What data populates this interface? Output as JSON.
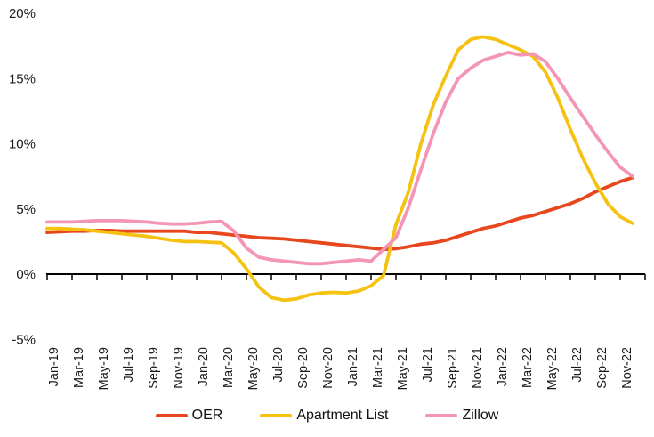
{
  "chart_data": {
    "type": "line",
    "title": "",
    "xlabel": "",
    "ylabel": "",
    "grid": false,
    "legend_position": "bottom",
    "ylim": [
      -5,
      20
    ],
    "y_tick_labels": [
      "-5%",
      "0%",
      "5%",
      "10%",
      "15%",
      "20%"
    ],
    "y_tick_values": [
      -5,
      0,
      5,
      10,
      15,
      20
    ],
    "x_tick_labels": [
      "Jan-19",
      "Mar-19",
      "May-19",
      "Jul-19",
      "Sep-19",
      "Nov-19",
      "Jan-20",
      "Mar-20",
      "May-20",
      "Jul-20",
      "Sep-20",
      "Nov-20",
      "Jan-21",
      "Mar-21",
      "May-21",
      "Jul-21",
      "Sep-21",
      "Nov-21",
      "Jan-22",
      "Mar-22",
      "May-22",
      "Jul-22",
      "Sep-22",
      "Nov-22"
    ],
    "months_per_x_tick": 2,
    "axis_color": "#000000",
    "series": [
      {
        "name": "OER",
        "color": "#E8471D",
        "values": [
          3.2,
          3.25,
          3.3,
          3.3,
          3.35,
          3.35,
          3.3,
          3.3,
          3.3,
          3.3,
          3.3,
          3.3,
          3.2,
          3.2,
          3.1,
          3.0,
          2.9,
          2.8,
          2.75,
          2.7,
          2.6,
          2.5,
          2.4,
          2.3,
          2.2,
          2.1,
          2.0,
          1.9,
          1.95,
          2.1,
          2.3,
          2.4,
          2.6,
          2.9,
          3.2,
          3.5,
          3.7,
          4.0,
          4.3,
          4.5,
          4.8,
          5.1,
          5.4,
          5.8,
          6.3,
          6.7,
          7.1,
          7.4
        ]
      },
      {
        "name": "Apartment List",
        "color": "#F5C211",
        "values": [
          3.5,
          3.5,
          3.45,
          3.4,
          3.3,
          3.2,
          3.1,
          3.0,
          2.9,
          2.75,
          2.6,
          2.5,
          2.5,
          2.45,
          2.4,
          1.6,
          0.4,
          -1.0,
          -1.8,
          -2.0,
          -1.9,
          -1.6,
          -1.45,
          -1.4,
          -1.45,
          -1.3,
          -0.9,
          -0.1,
          3.8,
          6.3,
          10.0,
          13.0,
          15.2,
          17.2,
          18.0,
          18.2,
          18.0,
          17.6,
          17.2,
          16.7,
          15.5,
          13.5,
          11.1,
          8.9,
          7.0,
          5.4,
          4.4,
          3.9
        ]
      },
      {
        "name": "Zillow",
        "color": "#F495B8",
        "values": [
          4.0,
          4.0,
          4.0,
          4.05,
          4.1,
          4.1,
          4.1,
          4.05,
          4.0,
          3.9,
          3.85,
          3.85,
          3.9,
          4.0,
          4.05,
          3.3,
          2.0,
          1.3,
          1.1,
          1.0,
          0.9,
          0.8,
          0.8,
          0.9,
          1.0,
          1.1,
          1.0,
          1.9,
          2.8,
          5.1,
          8.0,
          10.8,
          13.2,
          15.0,
          15.8,
          16.4,
          16.7,
          17.0,
          16.8,
          16.9,
          16.3,
          15.0,
          13.5,
          12.1,
          10.7,
          9.4,
          8.2,
          7.5
        ]
      }
    ]
  }
}
